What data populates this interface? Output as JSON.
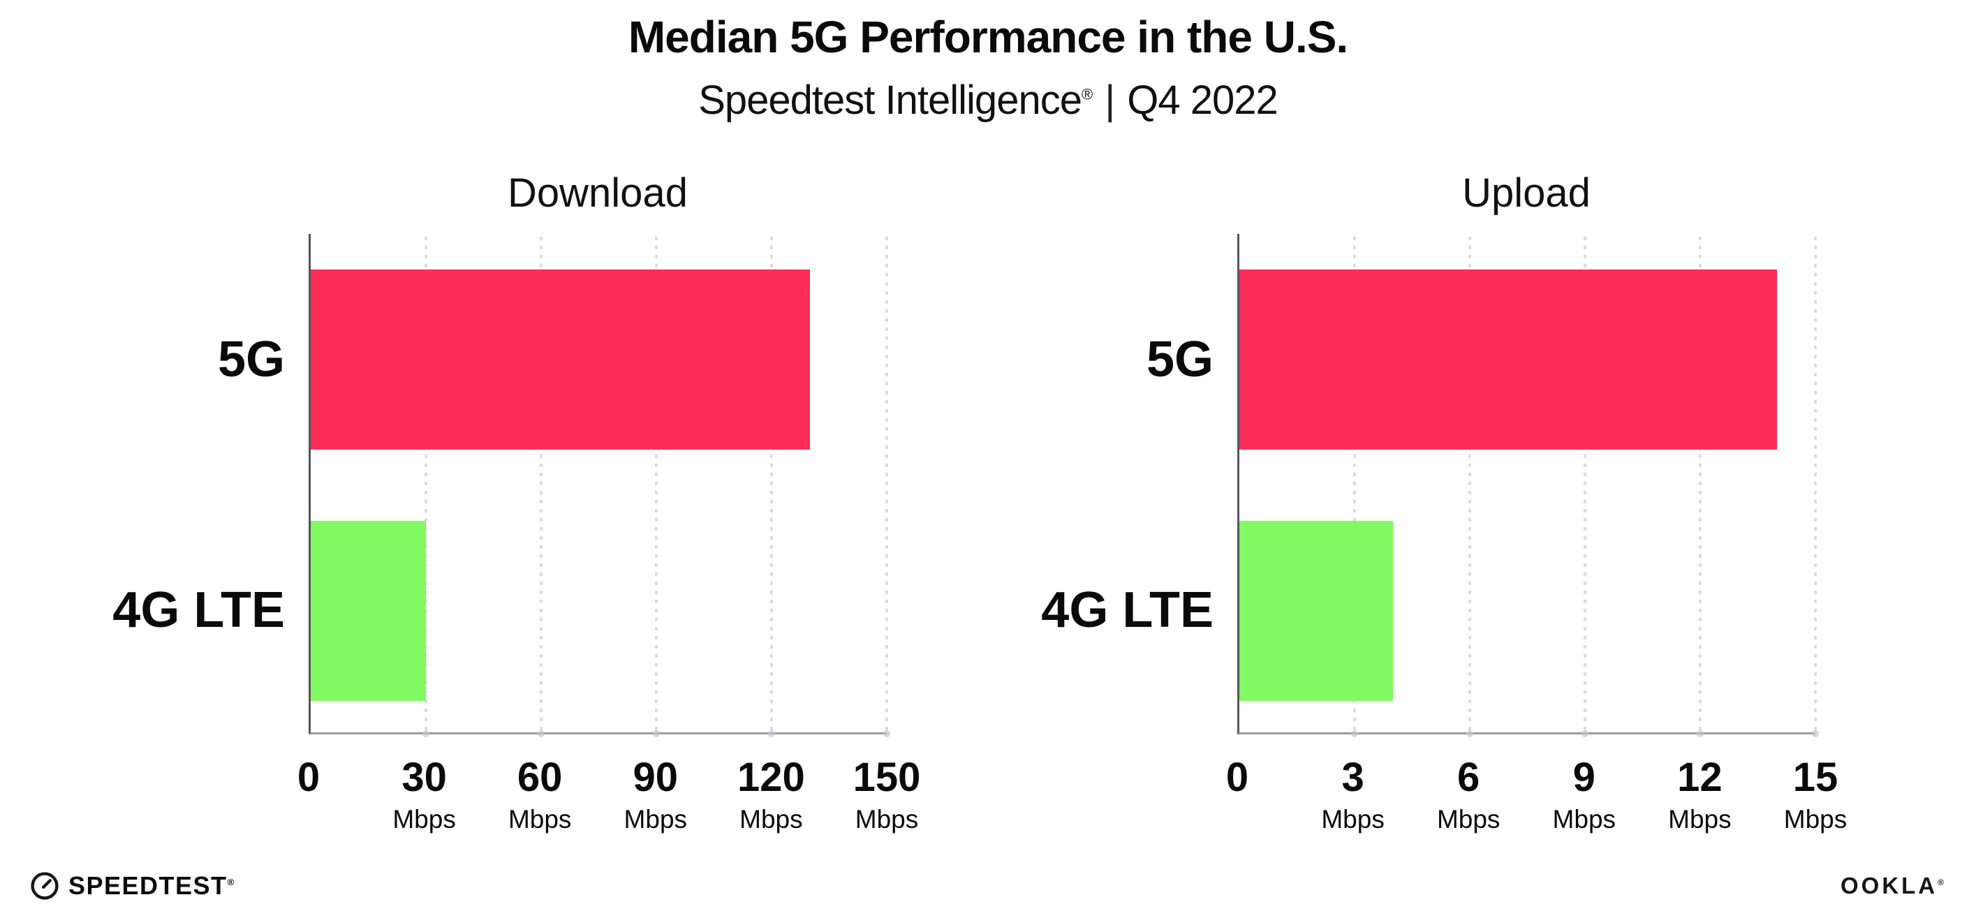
{
  "header": {
    "title": "Median 5G Performance in the U.S.",
    "subtitle_brand": "Speedtest Intelligence",
    "subtitle_reg": "®",
    "subtitle_sep": "|",
    "subtitle_period": "Q4 2022"
  },
  "chart_data": [
    {
      "type": "bar",
      "orientation": "horizontal",
      "title": "Download",
      "categories": [
        "5G",
        "4G LTE"
      ],
      "values": [
        130,
        30
      ],
      "unit": "Mbps",
      "xlim": [
        0,
        150
      ],
      "xticks": [
        0,
        30,
        60,
        90,
        120,
        150
      ],
      "colors": [
        "#fc2d56",
        "#81fa63"
      ],
      "grid": "dotted-vertical",
      "legend": "none"
    },
    {
      "type": "bar",
      "orientation": "horizontal",
      "title": "Upload",
      "categories": [
        "5G",
        "4G LTE"
      ],
      "values": [
        14,
        4
      ],
      "unit": "Mbps",
      "xlim": [
        0,
        15
      ],
      "xticks": [
        0,
        3,
        6,
        9,
        12,
        15
      ],
      "colors": [
        "#fc2d56",
        "#81fa63"
      ],
      "grid": "dotted-vertical",
      "legend": "none"
    }
  ],
  "footer": {
    "speedtest_label": "SPEEDTEST",
    "speedtest_mark": "®",
    "ookla_label": "OOKLA",
    "ookla_mark": "®"
  }
}
